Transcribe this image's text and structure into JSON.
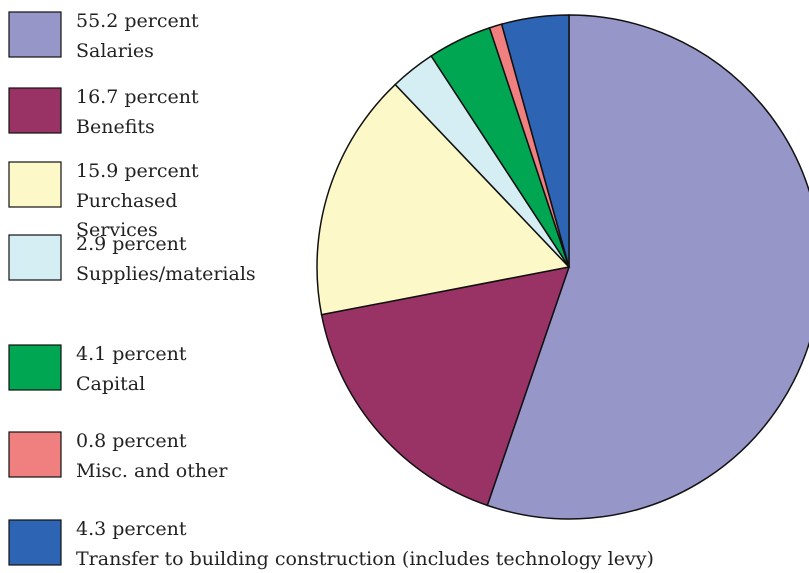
{
  "chart_data": {
    "type": "pie",
    "categories": [
      "Salaries",
      "Benefits",
      "Purchased Services",
      "Supplies/materials",
      "Capital",
      "Misc. and other",
      "Transfer to building construction (includes technology levy)"
    ],
    "values": [
      55.2,
      16.7,
      15.9,
      2.9,
      4.1,
      0.8,
      4.3
    ],
    "value_labels": [
      "55.2 percent",
      "16.7 percent",
      "15.9 percent",
      "2.9 percent",
      "4.1 percent",
      "0.8 percent",
      "4.3 percent"
    ],
    "colors": [
      "#9696c8",
      "#993366",
      "#fdf8c8",
      "#d4eef4",
      "#00a651",
      "#f08080",
      "#2e64b4"
    ]
  }
}
